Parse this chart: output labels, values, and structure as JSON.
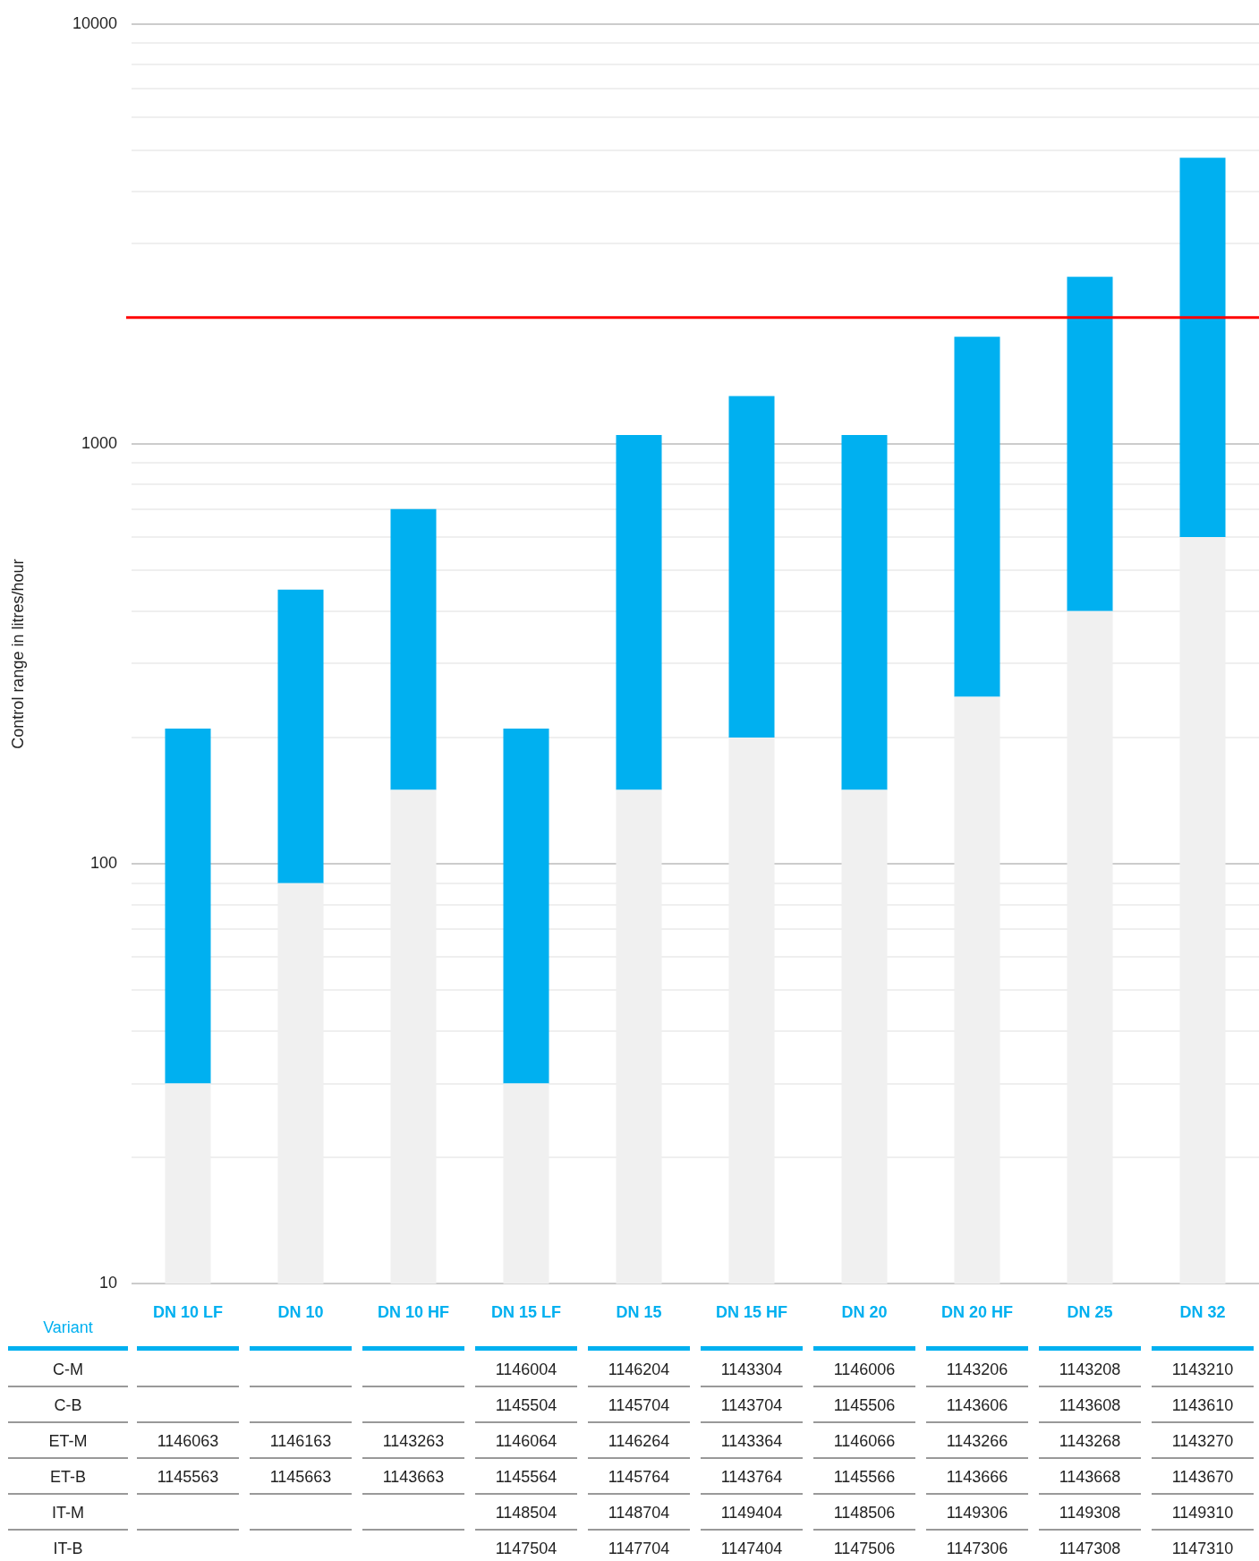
{
  "chart_data": {
    "type": "bar",
    "ylabel": "Control range in litres/hour",
    "log": true,
    "stacked": true,
    "grid": "y",
    "legend": false,
    "categories": [
      "DN 10 LF",
      "DN 10",
      "DN 10 HF",
      "DN 15 LF",
      "DN 15",
      "DN 15 HF",
      "DN 20",
      "DN 20 HF",
      "DN 25",
      "DN 32"
    ],
    "series": [
      {
        "color": "#f0f0f0",
        "values": [
          30,
          90,
          150,
          30,
          150,
          200,
          150,
          250,
          400,
          600
        ]
      },
      {
        "color": "#00b0f0",
        "values": [
          180,
          360,
          550,
          180,
          900,
          1100,
          900,
          1550,
          2100,
          4200
        ]
      }
    ],
    "ylim": [
      10,
      10000
    ],
    "yticks": [
      10,
      {
        "value": 20,
        "label": null
      },
      {
        "value": 30,
        "label": null
      },
      {
        "value": 40,
        "label": null
      },
      {
        "value": 50,
        "label": null
      },
      {
        "value": 60,
        "label": null
      },
      {
        "value": 70,
        "label": null
      },
      {
        "value": 80,
        "label": null
      },
      {
        "value": 90,
        "label": null
      },
      100,
      {
        "value": 200,
        "label": null
      },
      {
        "value": 300,
        "label": null
      },
      {
        "value": 400,
        "label": null
      },
      {
        "value": 500,
        "label": null
      },
      {
        "value": 600,
        "label": null
      },
      {
        "value": 700,
        "label": null
      },
      {
        "value": 800,
        "label": null
      },
      {
        "value": 900,
        "label": null
      },
      1000,
      {
        "value": 2000,
        "label": null
      },
      {
        "value": 3000,
        "label": null
      },
      {
        "value": 4000,
        "label": null
      },
      {
        "value": 5000,
        "label": null
      },
      {
        "value": 6000,
        "label": null
      },
      {
        "value": 7000,
        "label": null
      },
      {
        "value": 8000,
        "label": null
      },
      {
        "value": 9000,
        "label": null
      },
      10000
    ],
    "ref_lines": [
      {
        "axis": "y",
        "value": 2000,
        "color": "#ff0000"
      }
    ],
    "annotations": [
      "Variant",
      "C-M",
      null,
      null,
      null,
      "1146004",
      "1146204",
      "1143304",
      "1146006",
      "1143206",
      "1143208",
      "1143210",
      "C-B",
      null,
      null,
      null,
      "1145504",
      "1145704",
      "1143704",
      "1145506",
      "1143606",
      "1143608",
      "1143610",
      "ET-M",
      "1146063",
      "1146163",
      "1143263",
      "1146064",
      "1146264",
      "1143364",
      "1146066",
      "1143266",
      "1143268",
      "1143270",
      "ET-B",
      "1145563",
      "1145663",
      "1143663",
      "1145564",
      "1145764",
      "1143764",
      "1145566",
      "1143666",
      "1143668",
      "1143670",
      "IT-M",
      null,
      null,
      null,
      "1148504",
      "1148704",
      "1149404",
      "1148506",
      "1149306",
      "1149308",
      "1149310",
      "IT-B",
      null,
      null,
      null,
      "1147504",
      "1147704",
      "1147404",
      "1147506",
      "1147306",
      "1147308",
      "1147310"
    ]
  }
}
